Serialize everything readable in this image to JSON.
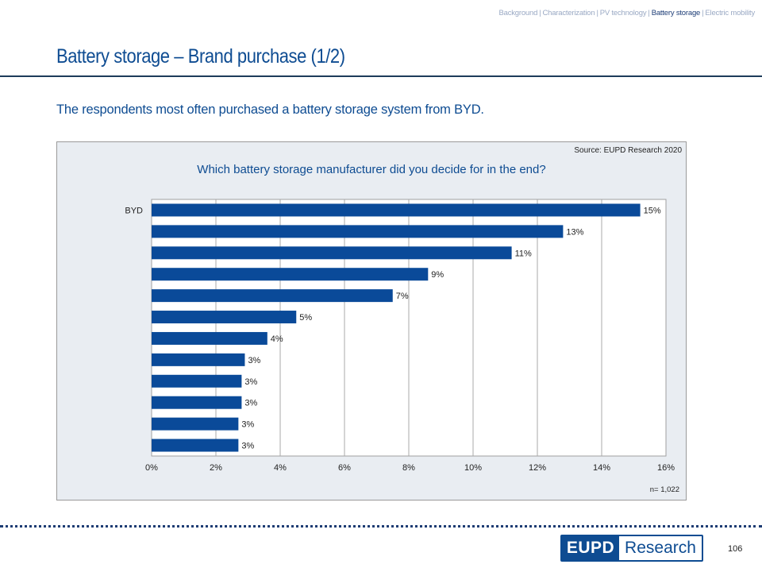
{
  "nav": {
    "items": [
      {
        "label": "Background",
        "active": false
      },
      {
        "label": "Characterization",
        "active": false
      },
      {
        "label": "PV technology",
        "active": false
      },
      {
        "label": "Battery storage",
        "active": true
      },
      {
        "label": "Electric mobility",
        "active": false
      }
    ],
    "separator": "|"
  },
  "page": {
    "title": "Battery storage – Brand purchase (1/2)",
    "subtitle": "The respondents most often purchased a battery storage system from BYD.",
    "page_number": "106"
  },
  "panel": {
    "source": "Source: EUPD Research 2020",
    "sample_size": "n= 1,022"
  },
  "logo": {
    "left": "EUPD",
    "right": "Research"
  },
  "colors": {
    "bar": "#0a4a99",
    "accent": "#0e4c92",
    "panel_bg": "#e9edf2"
  },
  "chart_data": {
    "type": "bar",
    "orientation": "horizontal",
    "title": "Which battery storage manufacturer did you decide for in the end?",
    "xlabel": "",
    "ylabel": "",
    "categories": [
      "BYD",
      "",
      "",
      "",
      "",
      "",
      "",
      "",
      "",
      "",
      "",
      ""
    ],
    "values": [
      15.2,
      12.8,
      11.2,
      8.6,
      7.5,
      4.5,
      3.6,
      2.9,
      2.8,
      2.8,
      2.7,
      2.7
    ],
    "data_labels": [
      "15%",
      "13%",
      "11%",
      "9%",
      "7%",
      "5%",
      "4%",
      "3%",
      "3%",
      "3%",
      "3%",
      "3%"
    ],
    "xlim": [
      0,
      16
    ],
    "xticks": [
      0,
      2,
      4,
      6,
      8,
      10,
      12,
      14,
      16
    ],
    "xtick_labels": [
      "0%",
      "2%",
      "4%",
      "6%",
      "8%",
      "10%",
      "12%",
      "14%",
      "16%"
    ],
    "grid": true,
    "legend": "none"
  }
}
